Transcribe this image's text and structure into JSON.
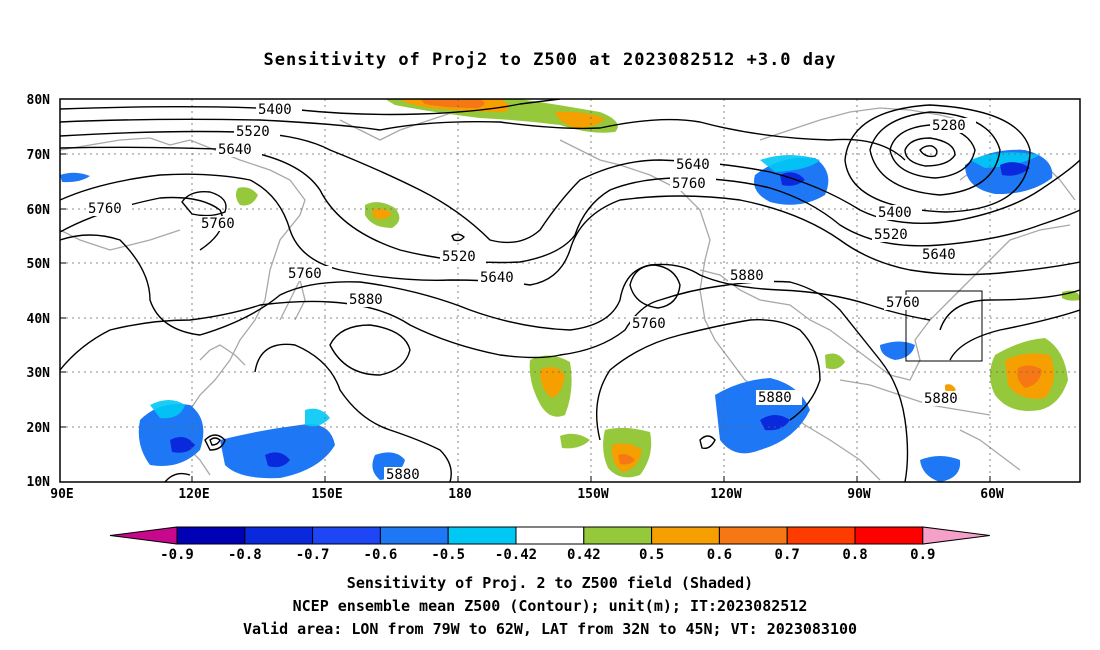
{
  "title": "Sensitivity of Proj2 to Z500 at 2023082512 +3.0 day",
  "map": {
    "lat_labels": [
      "80N",
      "70N",
      "60N",
      "50N",
      "40N",
      "30N",
      "20N",
      "10N"
    ],
    "lon_labels": [
      "90E",
      "120E",
      "150E",
      "180",
      "150W",
      "120W",
      "90W",
      "60W"
    ],
    "grid": true,
    "contour_labels": [
      {
        "text": "5400",
        "k": "c1"
      },
      {
        "text": "5520",
        "k": "c2"
      },
      {
        "text": "5640",
        "k": "c3"
      },
      {
        "text": "5760",
        "k": "c4"
      },
      {
        "text": "5760",
        "k": "c5"
      },
      {
        "text": "5520",
        "k": "c6"
      },
      {
        "text": "5640",
        "k": "c7"
      },
      {
        "text": "5760",
        "k": "c8"
      },
      {
        "text": "5880",
        "k": "c9"
      },
      {
        "text": "5760",
        "k": "c10"
      },
      {
        "text": "5640",
        "k": "c11"
      },
      {
        "text": "5760",
        "k": "c12"
      },
      {
        "text": "5880",
        "k": "c13"
      },
      {
        "text": "5280",
        "k": "c14"
      },
      {
        "text": "5400",
        "k": "c15"
      },
      {
        "text": "5520",
        "k": "c16"
      },
      {
        "text": "5640",
        "k": "c17"
      },
      {
        "text": "5760",
        "k": "c18"
      },
      {
        "text": "5880",
        "k": "c19"
      },
      {
        "text": "5880",
        "k": "c20"
      },
      {
        "text": "5880",
        "k": "c21"
      }
    ],
    "valid_area": {
      "lon_from": "79W",
      "lon_to": "62W",
      "lat_from": "32N",
      "lat_to": "45N"
    }
  },
  "colorbar": {
    "labels": [
      "-0.9",
      "-0.8",
      "-0.7",
      "-0.6",
      "-0.5",
      "-0.42",
      "0.42",
      "0.5",
      "0.6",
      "0.7",
      "0.8",
      "0.9"
    ],
    "colors": [
      "#c8088c",
      "#0000b4",
      "#0a28dc",
      "#1e46f5",
      "#1e78f5",
      "#00c8f5",
      "#ffffff",
      "#96c83c",
      "#f5a000",
      "#f57814",
      "#ff3c00",
      "#ff0000",
      "#f5a0c8"
    ]
  },
  "captions": {
    "line1": "Sensitivity of Proj. 2 to Z500 field (Shaded)",
    "line2": "NCEP ensemble mean Z500 (Contour); unit(m); IT:2023082512",
    "line3": "Valid area: LON from 79W to 62W, LAT from 32N to 45N; VT: 2023083100"
  }
}
